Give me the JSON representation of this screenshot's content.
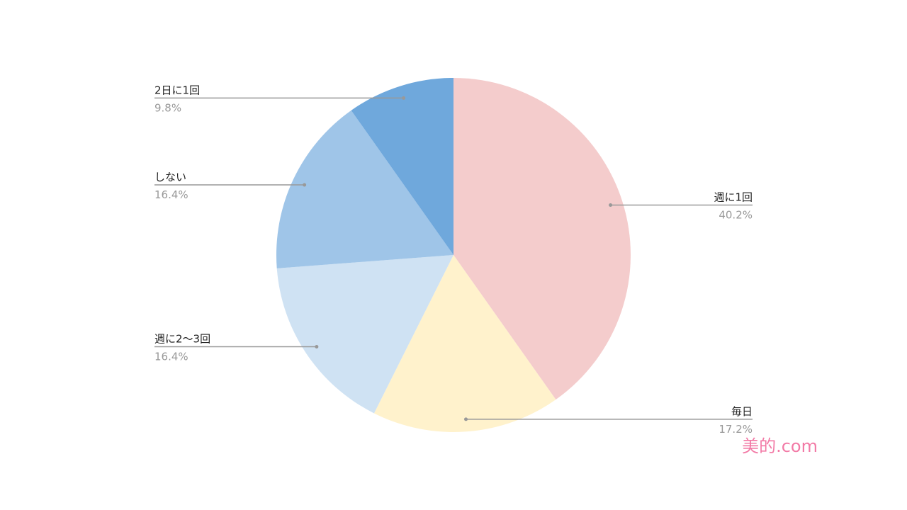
{
  "chart_data": {
    "type": "pie",
    "categories": [
      "週に1回",
      "毎日",
      "週に2〜3回",
      "しない",
      "2日に1回"
    ],
    "values": [
      40.2,
      17.2,
      16.4,
      16.4,
      9.8
    ],
    "value_labels": [
      "40.2%",
      "17.2%",
      "16.4%",
      "16.4%",
      "9.8%"
    ],
    "colors": [
      "#f4cccc",
      "#fff2cc",
      "#cfe2f3",
      "#9fc5e8",
      "#6fa8dc"
    ],
    "watermark": "美的.com"
  }
}
